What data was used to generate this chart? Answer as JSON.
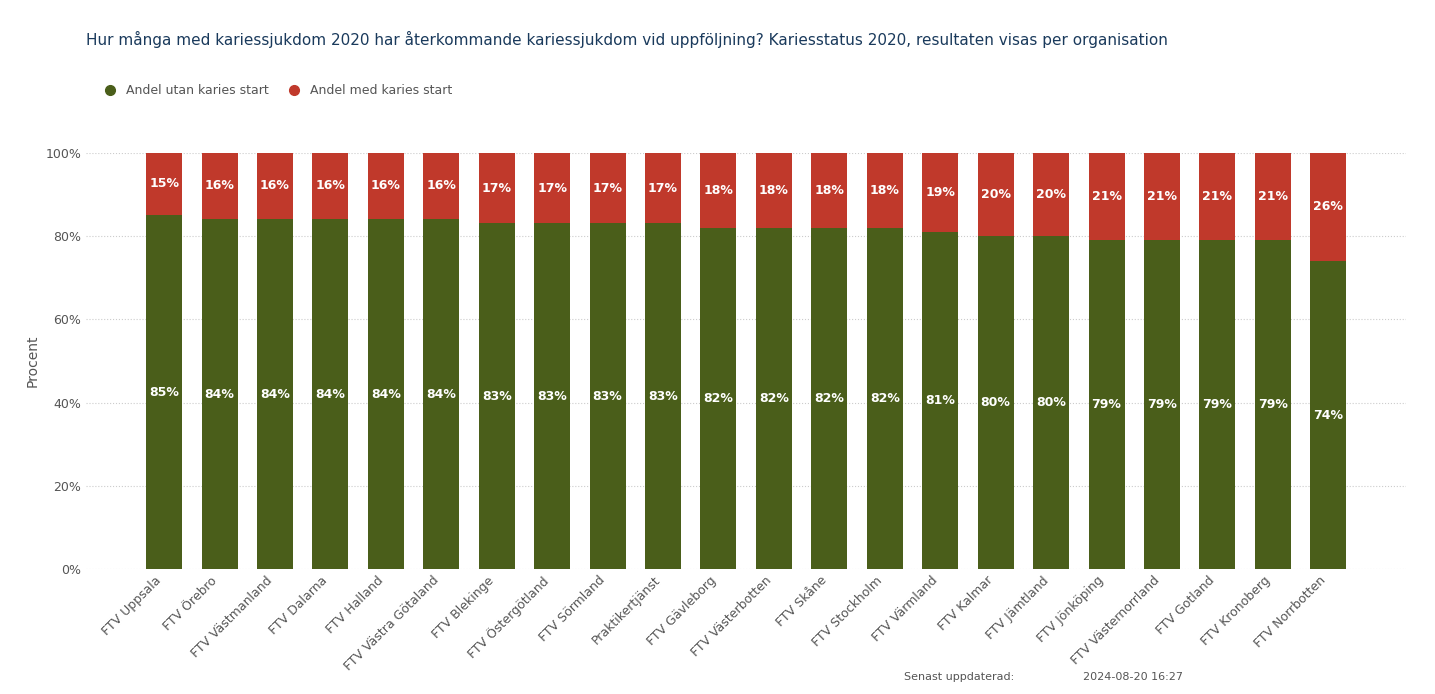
{
  "title": "Hur många med kariessjukdom 2020 har återkommande kariessjukdom vid uppföljning? Kariesstatus 2020, resultaten visas per organisation",
  "legend_labels": [
    "Andel utan karies start",
    "Andel med karies start"
  ],
  "ylabel": "Procent",
  "categories": [
    "FTV Uppsala",
    "FTV Örebro",
    "FTV Västmanland",
    "FTV Dalarna",
    "FTV Halland",
    "FTV Västra Götaland",
    "FTV Blekinge",
    "FTV Östergötland",
    "FTV Sörmland",
    "Praktikertjänst",
    "FTV Gävleborg",
    "FTV Västerbotten",
    "FTV Skåne",
    "FTV Stockholm",
    "FTV Värmland",
    "FTV Kalmar",
    "FTV Jämtland",
    "FTV Jönköping",
    "FTV Västernorrland",
    "FTV Gotland",
    "FTV Kronoberg",
    "FTV Norrbotten"
  ],
  "green_values": [
    85,
    84,
    84,
    84,
    84,
    84,
    83,
    83,
    83,
    83,
    82,
    82,
    82,
    82,
    81,
    80,
    80,
    79,
    79,
    79,
    79,
    74
  ],
  "red_values": [
    15,
    16,
    16,
    16,
    16,
    16,
    17,
    17,
    17,
    17,
    18,
    18,
    18,
    18,
    19,
    20,
    20,
    21,
    21,
    21,
    21,
    26
  ],
  "green_color": "#4a5e1a",
  "red_color": "#c0392b",
  "background_color": "#ffffff",
  "plot_background": "#ffffff",
  "grid_color": "#cccccc",
  "yticks": [
    0,
    20,
    40,
    60,
    80,
    100
  ],
  "ytick_labels": [
    "0%",
    "20%",
    "40%",
    "60%",
    "80%",
    "100%"
  ],
  "footer_text": "Senast uppdaterad:",
  "footer_date": "2024-08-20 16:27",
  "title_color": "#1a3a5c",
  "axis_label_color": "#555555",
  "legend_text_color": "#555555",
  "font_size_title": 11,
  "font_size_bar_label": 9,
  "font_size_tick": 9,
  "font_size_legend": 9,
  "font_size_footer": 8,
  "font_size_ylabel": 10
}
